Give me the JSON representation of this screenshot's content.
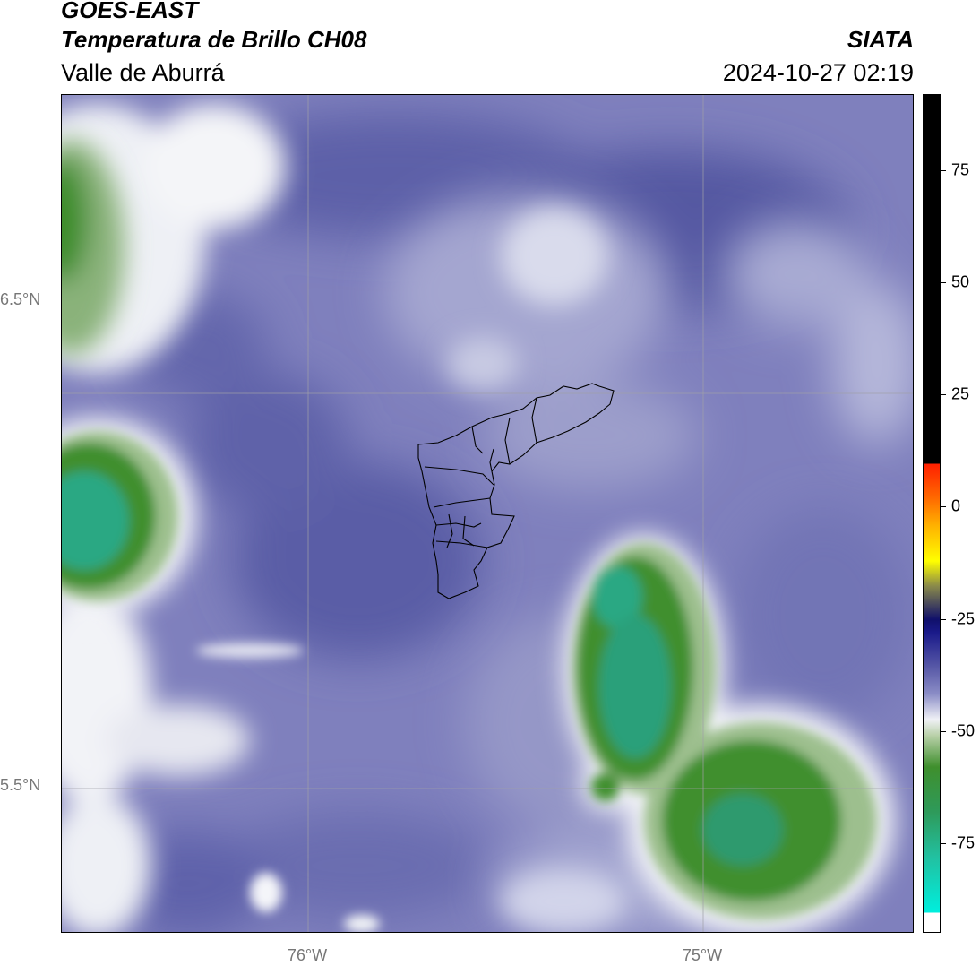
{
  "header": {
    "satellite": "GOES-EAST",
    "product": "Temperatura de Brillo CH08",
    "region": "Valle de Aburrá",
    "agency": "SIATA",
    "datetime": "2024-10-27 02:19"
  },
  "map": {
    "lat_labels": [
      "6.5°N",
      "5.5°N"
    ],
    "lon_labels": [
      "76°W",
      "75°W"
    ],
    "extent": {
      "lon_min": -76.62,
      "lon_max": -74.52,
      "lat_min": 5.13,
      "lat_max": 7.25
    },
    "gridlines": true,
    "background_color": "#7f80bd",
    "cold_cloud_colors": [
      "#f2f3f7",
      "#8ab27a",
      "#3b8b2a",
      "#2aa883"
    ]
  },
  "colorbar": {
    "ticks": [
      "75",
      "50",
      "25",
      "0",
      "-25",
      "-50",
      "-75"
    ],
    "tick_values": [
      75,
      50,
      25,
      0,
      -25,
      -50,
      -75
    ],
    "range": [
      -95,
      92
    ],
    "units_hint": "°C"
  }
}
